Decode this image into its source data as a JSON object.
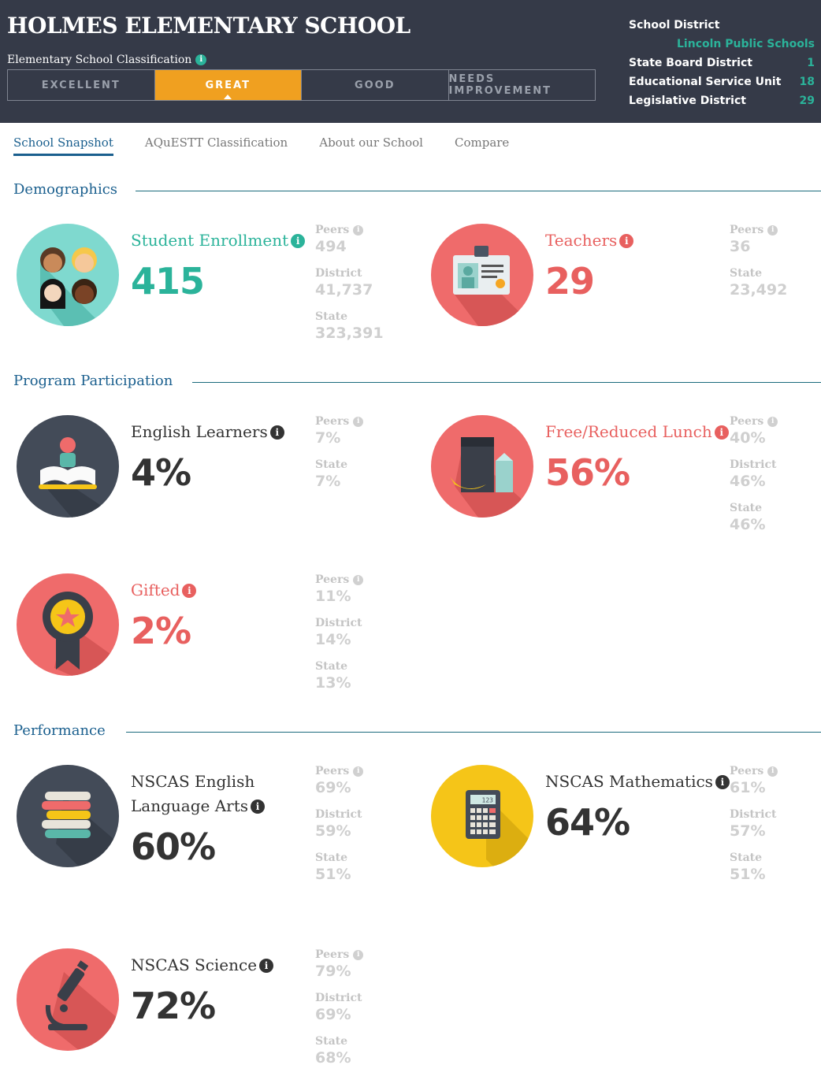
{
  "header": {
    "school_name": "HOLMES ELEMENTARY SCHOOL",
    "classification_label": "Elementary School Classification",
    "ratings": [
      "EXCELLENT",
      "GREAT",
      "GOOD",
      "NEEDS IMPROVEMENT"
    ],
    "active_rating": "GREAT",
    "district": {
      "school_district_label": "School District",
      "school_district_value": "Lincoln Public Schools",
      "state_board_label": "State Board District",
      "state_board_value": "1",
      "esu_label": "Educational Service Unit",
      "esu_value": "18",
      "legislative_label": "Legislative District",
      "legislative_value": "29"
    }
  },
  "tabs": [
    "School Snapshot",
    "AQuESTT Classification",
    "About our School",
    "Compare"
  ],
  "active_tab": "School Snapshot",
  "sections": {
    "demographics": "Demographics",
    "program": "Program Participation",
    "performance": "Performance"
  },
  "cmp_labels": {
    "peers": "Peers",
    "district": "District",
    "state": "State"
  },
  "cards": {
    "enrollment": {
      "label": "Student Enrollment",
      "value": "415",
      "peers": "494",
      "district": "41,737",
      "state": "323,391"
    },
    "teachers": {
      "label": "Teachers",
      "value": "29",
      "peers": "36",
      "state": "23,492"
    },
    "english": {
      "label": "English Learners",
      "value": "4%",
      "peers": "7%",
      "state": "7%"
    },
    "lunch": {
      "label": "Free/Reduced Lunch",
      "value": "56%",
      "peers": "40%",
      "district": "46%",
      "state": "46%"
    },
    "gifted": {
      "label": "Gifted",
      "value": "2%",
      "peers": "11%",
      "district": "14%",
      "state": "13%"
    },
    "ela": {
      "label": "NSCAS English Language Arts",
      "value": "60%",
      "peers": "69%",
      "district": "59%",
      "state": "51%"
    },
    "math": {
      "label": "NSCAS Mathematics",
      "value": "64%",
      "peers": "61%",
      "district": "57%",
      "state": "51%"
    },
    "science": {
      "label": "NSCAS Science",
      "value": "72%",
      "peers": "79%",
      "district": "69%",
      "state": "68%"
    }
  },
  "calculator_display": "123",
  "colors": {
    "header_bg": "#353a48",
    "active_rating": "#f0a020",
    "teal": "#2bb39a",
    "red": "#e8605f",
    "blue": "#1a5f8e",
    "yellow": "#f5c518"
  }
}
